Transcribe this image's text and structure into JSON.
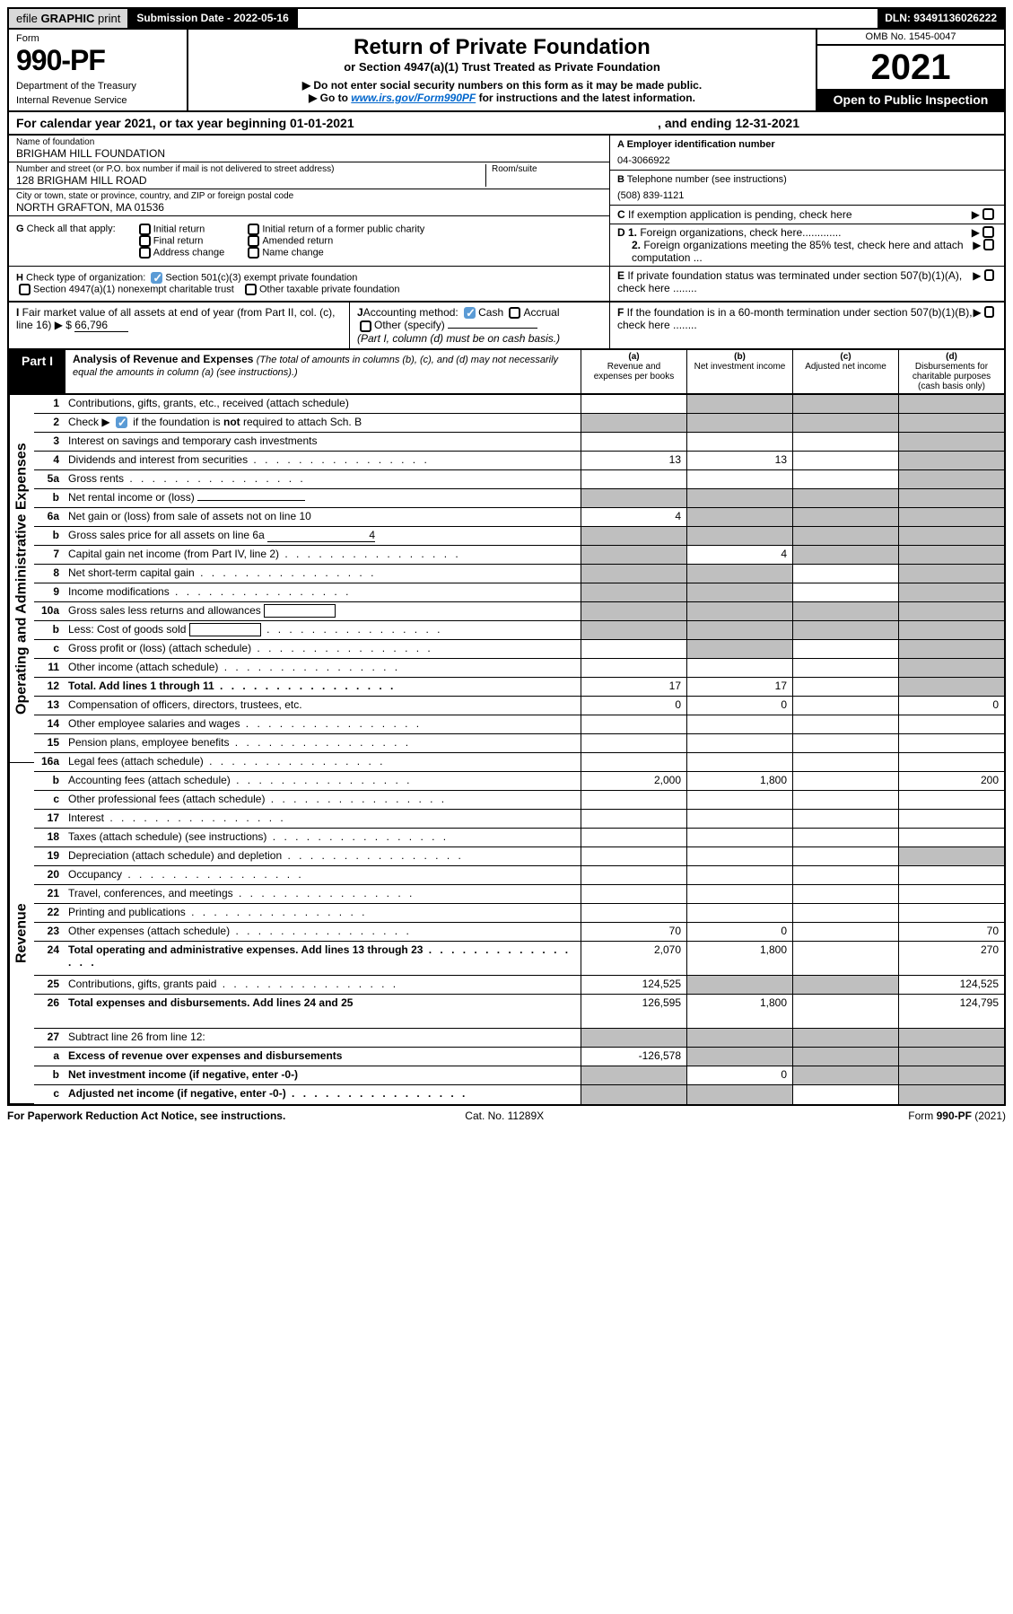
{
  "top": {
    "efile_prefix": "efile ",
    "efile_graphic": "GRAPHIC",
    "efile_print": " print",
    "sub_label": "Submission Date - ",
    "sub_date": "2022-05-16",
    "dln_label": "DLN: ",
    "dln": "93491136026222"
  },
  "header": {
    "form": "Form",
    "form_no": "990-PF",
    "dept": "Department of the Treasury",
    "irs": "Internal Revenue Service",
    "title": "Return of Private Foundation",
    "sub": "or Section 4947(a)(1) Trust Treated as Private Foundation",
    "warn": "Do not enter social security numbers on this form as it may be made public.",
    "goto_pre": "Go to ",
    "goto_url": "www.irs.gov/Form990PF",
    "goto_post": " for instructions and the latest information.",
    "omb": "OMB No. 1545-0047",
    "year": "2021",
    "open": "Open to Public Inspection"
  },
  "cal": {
    "text": "For calendar year 2021, or tax year beginning 01-01-2021",
    "end": ", and ending 12-31-2021"
  },
  "id": {
    "name_lab": "Name of foundation",
    "name": "BRIGHAM HILL FOUNDATION",
    "addr_lab": "Number and street (or P.O. box number if mail is not delivered to street address)",
    "addr": "128 BRIGHAM HILL ROAD",
    "room_lab": "Room/suite",
    "city_lab": "City or town, state or province, country, and ZIP or foreign postal code",
    "city": "NORTH GRAFTON, MA  01536",
    "a_lab": "A Employer identification number",
    "ein": "04-3066922",
    "b_lab": "B",
    "b_txt": " Telephone number (see instructions)",
    "phone": "(508) 839-1121",
    "c_lab": "C",
    "c_txt": " If exemption application is pending, check here",
    "d1_lab": "D 1.",
    "d1_txt": " Foreign organizations, check here.............",
    "d2_lab": "2.",
    "d2_txt": " Foreign organizations meeting the 85% test, check here and attach computation ...",
    "e_lab": "E",
    "e_txt": " If private foundation status was terminated under section 507(b)(1)(A), check here ........",
    "f_lab": "F",
    "f_txt": " If the foundation is in a 60-month termination under section 507(b)(1)(B), check here ........"
  },
  "g": {
    "lab": "G",
    "txt": " Check all that apply:",
    "o1": "Initial return",
    "o2": "Final return",
    "o3": "Address change",
    "o4": "Initial return of a former public charity",
    "o5": "Amended return",
    "o6": "Name change"
  },
  "h": {
    "lab": "H",
    "txt": " Check type of organization:",
    "o1": "Section 501(c)(3) exempt private foundation",
    "o2": "Section 4947(a)(1) nonexempt charitable trust",
    "o3": "Other taxable private foundation"
  },
  "i": {
    "lab": "I",
    "txt": " Fair market value of all assets at end of year (from Part II, col. (c), line 16)",
    "amt_lab": "$  ",
    "amt": "66,796"
  },
  "j": {
    "lab": "J",
    "txt": "Accounting method:",
    "o1": "Cash",
    "o2": "Accrual",
    "o3": "Other (specify)",
    "note": "(Part I, column (d) must be on cash basis.)"
  },
  "part1": {
    "tab": "Part I",
    "title_b": "Analysis of Revenue and Expenses ",
    "title_i": "(The total of amounts in columns (b), (c), and (d) may not necessarily equal the amounts in column (a) (see instructions).)",
    "ca": "(a)",
    "ca_t": "Revenue and expenses per books",
    "cb": "(b)",
    "cb_t": "Net investment income",
    "cc": "(c)",
    "cc_t": "Adjusted net income",
    "cd": "(d)",
    "cd_t": "Disbursements for charitable purposes (cash basis only)"
  },
  "side": {
    "rev": "Revenue",
    "exp": "Operating and Administrative Expenses"
  },
  "lines": [
    {
      "n": "1",
      "d": "Contributions, gifts, grants, etc., received (attach schedule)",
      "a": "",
      "b": "g",
      "c": "g",
      "dd": "g"
    },
    {
      "n": "2",
      "d": "Check ▶ [x] if the foundation is not required to attach Sch. B",
      "dots": false,
      "a": "g",
      "b": "g",
      "c": "g",
      "dd": "g",
      "chk": true
    },
    {
      "n": "3",
      "d": "Interest on savings and temporary cash investments",
      "a": "",
      "b": "",
      "c": "",
      "dd": "g"
    },
    {
      "n": "4",
      "d": "Dividends and interest from securities",
      "dots": true,
      "a": "13",
      "b": "13",
      "c": "",
      "dd": "g"
    },
    {
      "n": "5a",
      "d": "Gross rents",
      "dots": true,
      "a": "",
      "b": "",
      "c": "",
      "dd": "g"
    },
    {
      "n": "b",
      "d": "Net rental income or (loss)",
      "uline": true,
      "a": "g",
      "b": "g",
      "c": "g",
      "dd": "g"
    },
    {
      "n": "6a",
      "d": "Net gain or (loss) from sale of assets not on line 10",
      "a": "4",
      "b": "g",
      "c": "g",
      "dd": "g"
    },
    {
      "n": "b",
      "d": "Gross sales price for all assets on line 6a",
      "uline": true,
      "uval": "4",
      "a": "g",
      "b": "g",
      "c": "g",
      "dd": "g"
    },
    {
      "n": "7",
      "d": "Capital gain net income (from Part IV, line 2)",
      "dots": true,
      "a": "g",
      "b": "4",
      "c": "g",
      "dd": "g"
    },
    {
      "n": "8",
      "d": "Net short-term capital gain",
      "dots": true,
      "a": "g",
      "b": "g",
      "c": "",
      "dd": "g"
    },
    {
      "n": "9",
      "d": "Income modifications",
      "dots": true,
      "a": "g",
      "b": "g",
      "c": "",
      "dd": "g"
    },
    {
      "n": "10a",
      "d": "Gross sales less returns and allowances",
      "box": true,
      "a": "g",
      "b": "g",
      "c": "g",
      "dd": "g"
    },
    {
      "n": "b",
      "d": "Less: Cost of goods sold",
      "dots": true,
      "box": true,
      "a": "g",
      "b": "g",
      "c": "g",
      "dd": "g"
    },
    {
      "n": "c",
      "d": "Gross profit or (loss) (attach schedule)",
      "dots": true,
      "a": "",
      "b": "g",
      "c": "",
      "dd": "g"
    },
    {
      "n": "11",
      "d": "Other income (attach schedule)",
      "dots": true,
      "a": "",
      "b": "",
      "c": "",
      "dd": "g"
    },
    {
      "n": "12",
      "d": "Total. Add lines 1 through 11",
      "dots": true,
      "bold": true,
      "a": "17",
      "b": "17",
      "c": "",
      "dd": "g"
    },
    {
      "n": "13",
      "d": "Compensation of officers, directors, trustees, etc.",
      "a": "0",
      "b": "0",
      "c": "",
      "dd": "0"
    },
    {
      "n": "14",
      "d": "Other employee salaries and wages",
      "dots": true,
      "a": "",
      "b": "",
      "c": "",
      "dd": ""
    },
    {
      "n": "15",
      "d": "Pension plans, employee benefits",
      "dots": true,
      "a": "",
      "b": "",
      "c": "",
      "dd": ""
    },
    {
      "n": "16a",
      "d": "Legal fees (attach schedule)",
      "dots": true,
      "a": "",
      "b": "",
      "c": "",
      "dd": ""
    },
    {
      "n": "b",
      "d": "Accounting fees (attach schedule)",
      "dots": true,
      "a": "2,000",
      "b": "1,800",
      "c": "",
      "dd": "200"
    },
    {
      "n": "c",
      "d": "Other professional fees (attach schedule)",
      "dots": true,
      "a": "",
      "b": "",
      "c": "",
      "dd": ""
    },
    {
      "n": "17",
      "d": "Interest",
      "dots": true,
      "a": "",
      "b": "",
      "c": "",
      "dd": ""
    },
    {
      "n": "18",
      "d": "Taxes (attach schedule) (see instructions)",
      "dots": true,
      "a": "",
      "b": "",
      "c": "",
      "dd": ""
    },
    {
      "n": "19",
      "d": "Depreciation (attach schedule) and depletion",
      "dots": true,
      "a": "",
      "b": "",
      "c": "",
      "dd": "g"
    },
    {
      "n": "20",
      "d": "Occupancy",
      "dots": true,
      "a": "",
      "b": "",
      "c": "",
      "dd": ""
    },
    {
      "n": "21",
      "d": "Travel, conferences, and meetings",
      "dots": true,
      "a": "",
      "b": "",
      "c": "",
      "dd": ""
    },
    {
      "n": "22",
      "d": "Printing and publications",
      "dots": true,
      "a": "",
      "b": "",
      "c": "",
      "dd": ""
    },
    {
      "n": "23",
      "d": "Other expenses (attach schedule)",
      "dots": true,
      "a": "70",
      "b": "0",
      "c": "",
      "dd": "70"
    },
    {
      "n": "24",
      "d": "Total operating and administrative expenses. Add lines 13 through 23",
      "dots": true,
      "bold": true,
      "a": "2,070",
      "b": "1,800",
      "c": "",
      "dd": "270",
      "tall": true
    },
    {
      "n": "25",
      "d": "Contributions, gifts, grants paid",
      "dots": true,
      "a": "124,525",
      "b": "g",
      "c": "g",
      "dd": "124,525"
    },
    {
      "n": "26",
      "d": "Total expenses and disbursements. Add lines 24 and 25",
      "bold": true,
      "a": "126,595",
      "b": "1,800",
      "c": "",
      "dd": "124,795",
      "tall": true
    },
    {
      "n": "27",
      "d": "Subtract line 26 from line 12:",
      "a": "g",
      "b": "g",
      "c": "g",
      "dd": "g"
    },
    {
      "n": "a",
      "d": "Excess of revenue over expenses and disbursements",
      "bold": true,
      "a": "-126,578",
      "b": "g",
      "c": "g",
      "dd": "g"
    },
    {
      "n": "b",
      "d": "Net investment income (if negative, enter -0-)",
      "bold": true,
      "a": "g",
      "b": "0",
      "c": "g",
      "dd": "g"
    },
    {
      "n": "c",
      "d": "Adjusted net income (if negative, enter -0-)",
      "dots": true,
      "bold": true,
      "a": "g",
      "b": "g",
      "c": "",
      "dd": "g"
    }
  ],
  "foot": {
    "l": "For Paperwork Reduction Act Notice, see instructions.",
    "m": "Cat. No. 11289X",
    "r": "Form 990-PF (2021)"
  }
}
